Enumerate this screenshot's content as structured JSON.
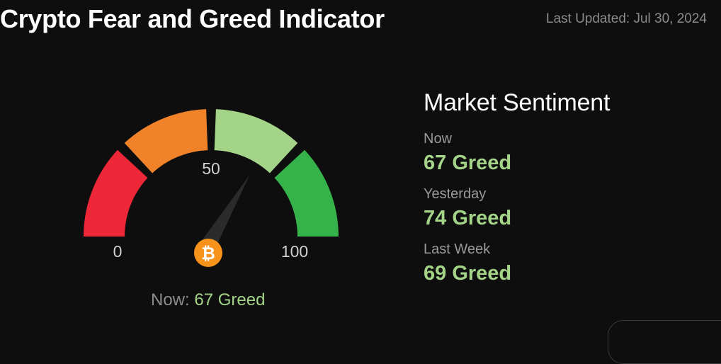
{
  "header": {
    "title": "Crypto Fear and Greed Indicator",
    "last_updated": "Last Updated: Jul 30, 2024"
  },
  "gauge": {
    "value": 67,
    "min_label": "0",
    "mid_label": "50",
    "max_label": "100",
    "now_label": "Now:",
    "now_value": "67 Greed",
    "segment_colors": [
      "#ee2738",
      "#f0822a",
      "#a3d487",
      "#35b24a"
    ],
    "needle_color": "#2b2b2b",
    "coin_color": "#f7931a",
    "coin_icon": "bitcoin-icon"
  },
  "sentiment": {
    "heading": "Market Sentiment",
    "rows": [
      {
        "period": "Now",
        "value": "67 Greed"
      },
      {
        "period": "Yesterday",
        "value": "74 Greed"
      },
      {
        "period": "Last Week",
        "value": "69 Greed"
      }
    ]
  },
  "colors": {
    "background": "#0e0e0e",
    "greed": "#a3d487"
  }
}
